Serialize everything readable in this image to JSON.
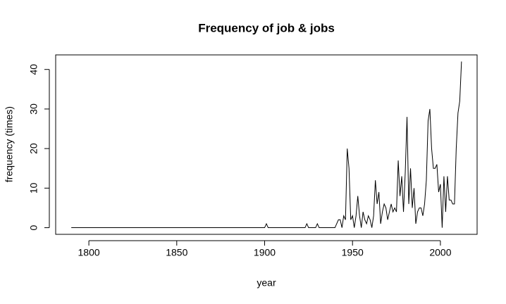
{
  "chart_data": {
    "type": "line",
    "title": "Frequency of job & jobs",
    "x_label": "year",
    "y_label": "frequency (times)",
    "x": [
      1790,
      1900,
      1901,
      1902,
      1923,
      1924,
      1925,
      1929,
      1930,
      1931,
      1940,
      1942,
      1943,
      1944,
      1945,
      1946,
      1947,
      1948,
      1949,
      1950,
      1951,
      1952,
      1953,
      1954,
      1955,
      1956,
      1957,
      1958,
      1959,
      1960,
      1961,
      1962,
      1963,
      1964,
      1965,
      1966,
      1967,
      1968,
      1969,
      1970,
      1971,
      1972,
      1973,
      1974,
      1975,
      1976,
      1977,
      1978,
      1979,
      1980,
      1981,
      1982,
      1983,
      1984,
      1985,
      1986,
      1987,
      1988,
      1989,
      1990,
      1991,
      1992,
      1993,
      1994,
      1995,
      1996,
      1997,
      1998,
      1999,
      2000,
      2001,
      2002,
      2003,
      2004,
      2005,
      2006,
      2007,
      2008,
      2009,
      2010,
      2011,
      2012
    ],
    "values": [
      0,
      0,
      1,
      0,
      0,
      1,
      0,
      0,
      1,
      0,
      0,
      2,
      2,
      0,
      3,
      2,
      20,
      15,
      2,
      3,
      0,
      3,
      8,
      3,
      0,
      4,
      2,
      1,
      3,
      2,
      0,
      3,
      12,
      6,
      9,
      1,
      4,
      6,
      5,
      2,
      4,
      6,
      4,
      5,
      4,
      17,
      8,
      13,
      4,
      14,
      28,
      6,
      15,
      5,
      10,
      1,
      4,
      5,
      5,
      3,
      6,
      12,
      27,
      30,
      20,
      15,
      15,
      16,
      9,
      11,
      0,
      13,
      4,
      13,
      7,
      7,
      6,
      6,
      20,
      29,
      32,
      42
    ],
    "color": "#000000",
    "xlim": [
      1781.12,
      2020.88
    ],
    "xticks": [
      1800,
      1850,
      1900,
      1950,
      2000
    ],
    "ylim": [
      -1.68,
      43.68
    ],
    "yticks": [
      0,
      10,
      20,
      30,
      40
    ]
  }
}
